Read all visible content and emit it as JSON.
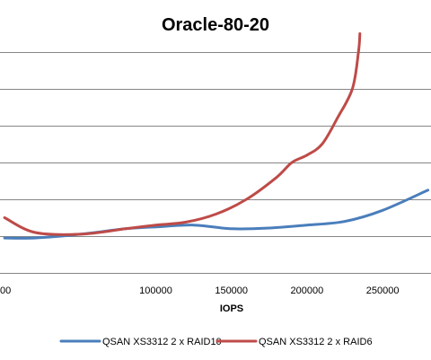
{
  "chart_data": {
    "type": "line",
    "title": "Oracle-80-20",
    "xlabel": "IOPS",
    "ylabel": "",
    "x_ticks": [
      100000,
      150000,
      200000,
      250000
    ],
    "x_tick_labels": [
      "100000",
      "150000",
      "200000",
      "250000"
    ],
    "left_edge_tick_label": "00",
    "grid": true,
    "legend_position": "bottom",
    "series": [
      {
        "name": "QSAN XS3312 2 x RAID10",
        "color": "#4a7ebb",
        "x": [
          0,
          20000,
          50000,
          80000,
          100000,
          125000,
          150000,
          175000,
          200000,
          225000,
          250000,
          280000
        ],
        "y": [
          0.95,
          0.95,
          1.05,
          1.2,
          1.25,
          1.3,
          1.2,
          1.22,
          1.3,
          1.4,
          1.7,
          2.25
        ]
      },
      {
        "name": "QSAN XS3312 2 x RAID6",
        "color": "#be4b48",
        "x": [
          0,
          20000,
          50000,
          80000,
          100000,
          120000,
          140000,
          160000,
          180000,
          190000,
          200000,
          210000,
          220000,
          230000,
          234000,
          235000
        ],
        "y": [
          1.5,
          1.1,
          1.05,
          1.2,
          1.3,
          1.38,
          1.6,
          2.0,
          2.6,
          3.0,
          3.2,
          3.5,
          4.2,
          5.0,
          6.0,
          6.5
        ]
      }
    ]
  }
}
